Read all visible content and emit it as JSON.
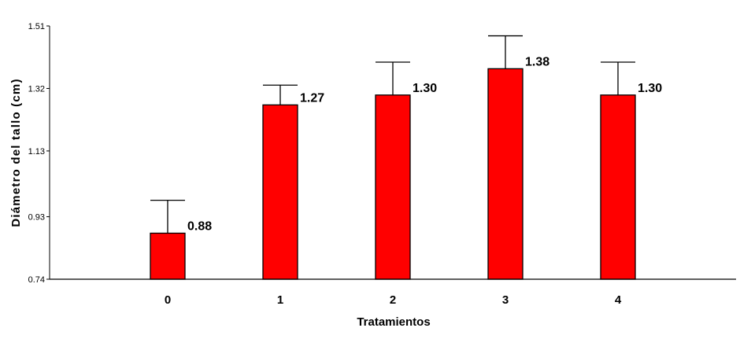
{
  "chart_data": {
    "type": "bar",
    "title": "",
    "xlabel": "Tratamientos",
    "ylabel": "Diámetro del tallo (cm)",
    "categories": [
      "0",
      "1",
      "2",
      "3",
      "4"
    ],
    "values": [
      0.88,
      1.27,
      1.3,
      1.38,
      1.3
    ],
    "value_labels": [
      "0.88",
      "1.27",
      "1.30",
      "1.38",
      "1.30"
    ],
    "error_upper": [
      0.98,
      1.33,
      1.4,
      1.48,
      1.4
    ],
    "yticks": [
      0.74,
      0.93,
      1.13,
      1.32,
      1.51
    ],
    "ytick_labels": [
      "0.74",
      "0.93",
      "1.13",
      "1.32",
      "1.51"
    ],
    "ylim": [
      0.74,
      1.51
    ],
    "grid": false,
    "legend": "none",
    "bar_color": "#FF0000",
    "edge_color": "#000000"
  }
}
